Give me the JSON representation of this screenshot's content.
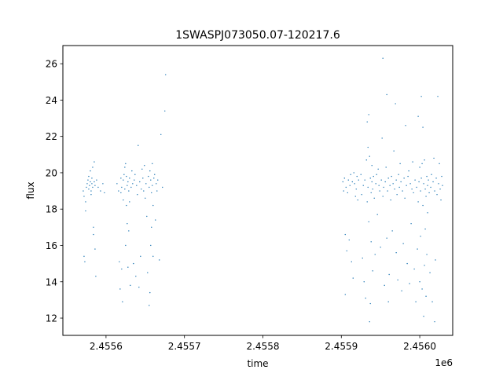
{
  "chart_data": {
    "type": "scatter",
    "title": "1SWASPJ073050.07-120217.6",
    "xlabel": "time",
    "ylabel": "flux",
    "x_offset_label": "1e6",
    "xlim": [
      2455545,
      2456042
    ],
    "ylim": [
      11.05,
      27.0
    ],
    "x_ticks": [
      {
        "value": 2455600,
        "label": "2.4556"
      },
      {
        "value": 2455700,
        "label": "2.4557"
      },
      {
        "value": 2455800,
        "label": "2.4558"
      },
      {
        "value": 2455900,
        "label": "2.4559"
      },
      {
        "value": 2456000,
        "label": "2.4560"
      }
    ],
    "y_ticks": [
      {
        "value": 12,
        "label": "12"
      },
      {
        "value": 14,
        "label": "14"
      },
      {
        "value": 16,
        "label": "16"
      },
      {
        "value": 18,
        "label": "18"
      },
      {
        "value": 20,
        "label": "20"
      },
      {
        "value": 22,
        "label": "22"
      },
      {
        "value": 24,
        "label": "24"
      },
      {
        "value": 26,
        "label": "26"
      }
    ],
    "grid": false,
    "legend": "none",
    "marker_color": "#1f77b4",
    "series": [
      {
        "points": [
          [
            2455571,
            19.0
          ],
          [
            2455572,
            18.7
          ],
          [
            2455572,
            15.4
          ],
          [
            2455573,
            15.1
          ],
          [
            2455574,
            18.4
          ],
          [
            2455574,
            17.9
          ],
          [
            2455575,
            19.2
          ],
          [
            2455576,
            19.4
          ],
          [
            2455577,
            19.6
          ],
          [
            2455578,
            19.8
          ],
          [
            2455578,
            19.1
          ],
          [
            2455579,
            19.3
          ],
          [
            2455580,
            19.5
          ],
          [
            2455580,
            20.1
          ],
          [
            2455581,
            19.0
          ],
          [
            2455581,
            18.8
          ],
          [
            2455582,
            19.4
          ],
          [
            2455582,
            19.7
          ],
          [
            2455583,
            19.2
          ],
          [
            2455583,
            20.3
          ],
          [
            2455584,
            16.6
          ],
          [
            2455584,
            17.0
          ],
          [
            2455585,
            19.5
          ],
          [
            2455585,
            20.6
          ],
          [
            2455586,
            15.8
          ],
          [
            2455586,
            19.3
          ],
          [
            2455587,
            14.3
          ],
          [
            2455588,
            19.6
          ],
          [
            2455590,
            19.2
          ],
          [
            2455593,
            19.0
          ],
          [
            2455596,
            19.4
          ],
          [
            2455598,
            18.9
          ],
          [
            2455614,
            19.4
          ],
          [
            2455616,
            19.0
          ],
          [
            2455617,
            15.1
          ],
          [
            2455618,
            13.6
          ],
          [
            2455619,
            19.7
          ],
          [
            2455619,
            18.9
          ],
          [
            2455620,
            14.7
          ],
          [
            2455620,
            19.2
          ],
          [
            2455621,
            12.9
          ],
          [
            2455622,
            19.6
          ],
          [
            2455622,
            18.5
          ],
          [
            2455623,
            19.9
          ],
          [
            2455624,
            20.3
          ],
          [
            2455624,
            19.1
          ],
          [
            2455625,
            20.5
          ],
          [
            2455625,
            16.0
          ],
          [
            2455626,
            18.2
          ],
          [
            2455626,
            19.8
          ],
          [
            2455627,
            19.3
          ],
          [
            2455627,
            17.2
          ],
          [
            2455628,
            19.5
          ],
          [
            2455628,
            14.8
          ],
          [
            2455629,
            19.0
          ],
          [
            2455629,
            16.8
          ],
          [
            2455630,
            19.7
          ],
          [
            2455630,
            18.4
          ],
          [
            2455631,
            13.8
          ],
          [
            2455632,
            19.2
          ],
          [
            2455633,
            20.1
          ],
          [
            2455634,
            19.4
          ],
          [
            2455635,
            15.0
          ],
          [
            2455636,
            19.6
          ],
          [
            2455637,
            19.9
          ],
          [
            2455638,
            14.3
          ],
          [
            2455639,
            19.3
          ],
          [
            2455640,
            18.8
          ],
          [
            2455641,
            21.5
          ],
          [
            2455642,
            13.7
          ],
          [
            2455643,
            19.5
          ],
          [
            2455644,
            15.4
          ],
          [
            2455645,
            19.1
          ],
          [
            2455646,
            20.2
          ],
          [
            2455647,
            19.7
          ],
          [
            2455648,
            19.0
          ],
          [
            2455649,
            20.4
          ],
          [
            2455650,
            18.6
          ],
          [
            2455651,
            19.4
          ],
          [
            2455652,
            17.6
          ],
          [
            2455653,
            14.5
          ],
          [
            2455654,
            19.8
          ],
          [
            2455655,
            12.7
          ],
          [
            2455655,
            19.2
          ],
          [
            2455656,
            13.4
          ],
          [
            2455656,
            20.1
          ],
          [
            2455657,
            16.0
          ],
          [
            2455657,
            19.6
          ],
          [
            2455658,
            17.0
          ],
          [
            2455658,
            18.9
          ],
          [
            2455659,
            19.3
          ],
          [
            2455659,
            20.5
          ],
          [
            2455660,
            15.4
          ],
          [
            2455660,
            18.2
          ],
          [
            2455661,
            19.7
          ],
          [
            2455662,
            19.9
          ],
          [
            2455663,
            17.4
          ],
          [
            2455664,
            19.4
          ],
          [
            2455665,
            19.0
          ],
          [
            2455666,
            19.6
          ],
          [
            2455668,
            15.2
          ],
          [
            2455670,
            22.1
          ],
          [
            2455672,
            19.2
          ],
          [
            2455675,
            23.4
          ],
          [
            2455676,
            25.4
          ],
          [
            2455902,
            19.5
          ],
          [
            2455903,
            19.0
          ],
          [
            2455904,
            19.7
          ],
          [
            2455905,
            13.3
          ],
          [
            2455905,
            16.6
          ],
          [
            2455906,
            19.2
          ],
          [
            2455907,
            15.7
          ],
          [
            2455908,
            18.9
          ],
          [
            2455909,
            19.6
          ],
          [
            2455910,
            16.3
          ],
          [
            2455911,
            19.3
          ],
          [
            2455912,
            19.9
          ],
          [
            2455913,
            15.1
          ],
          [
            2455914,
            19.5
          ],
          [
            2455915,
            14.2
          ],
          [
            2455916,
            20.0
          ],
          [
            2455917,
            19.4
          ],
          [
            2455918,
            18.7
          ],
          [
            2455919,
            19.1
          ],
          [
            2455920,
            19.8
          ],
          [
            2455921,
            18.5
          ],
          [
            2455922,
            19.6
          ],
          [
            2455925,
            19.9
          ],
          [
            2455926,
            18.8
          ],
          [
            2455927,
            15.3
          ],
          [
            2455928,
            19.3
          ],
          [
            2455929,
            14.0
          ],
          [
            2455930,
            19.6
          ],
          [
            2455931,
            13.1
          ],
          [
            2455932,
            20.7
          ],
          [
            2455933,
            22.8
          ],
          [
            2455933,
            18.4
          ],
          [
            2455934,
            21.4
          ],
          [
            2455934,
            19.2
          ],
          [
            2455935,
            23.2
          ],
          [
            2455935,
            17.3
          ],
          [
            2455936,
            11.8
          ],
          [
            2455936,
            20.9
          ],
          [
            2455937,
            12.8
          ],
          [
            2455937,
            19.7
          ],
          [
            2455938,
            16.2
          ],
          [
            2455938,
            18.9
          ],
          [
            2455939,
            19.5
          ],
          [
            2455939,
            20.4
          ],
          [
            2455940,
            14.6
          ],
          [
            2455940,
            19.1
          ],
          [
            2455941,
            19.8
          ],
          [
            2455942,
            18.6
          ],
          [
            2455943,
            15.5
          ],
          [
            2455944,
            19.4
          ],
          [
            2455945,
            19.9
          ],
          [
            2455946,
            17.7
          ],
          [
            2455947,
            20.2
          ],
          [
            2455948,
            19.3
          ],
          [
            2455949,
            19.0
          ],
          [
            2455950,
            15.9
          ],
          [
            2455951,
            19.6
          ],
          [
            2455952,
            21.9
          ],
          [
            2455953,
            26.3
          ],
          [
            2455953,
            18.7
          ],
          [
            2455954,
            19.2
          ],
          [
            2455955,
            13.8
          ],
          [
            2455956,
            19.5
          ],
          [
            2455957,
            20.3
          ],
          [
            2455958,
            24.3
          ],
          [
            2455958,
            16.4
          ],
          [
            2455959,
            19.0
          ],
          [
            2455960,
            12.9
          ],
          [
            2455960,
            19.7
          ],
          [
            2455961,
            14.4
          ],
          [
            2455962,
            19.3
          ],
          [
            2455963,
            18.5
          ],
          [
            2455964,
            19.8
          ],
          [
            2455965,
            16.8
          ],
          [
            2455966,
            19.4
          ],
          [
            2455967,
            21.2
          ],
          [
            2455968,
            19.1
          ],
          [
            2455969,
            23.8
          ],
          [
            2455970,
            19.6
          ],
          [
            2455970,
            15.6
          ],
          [
            2455971,
            18.8
          ],
          [
            2455972,
            14.1
          ],
          [
            2455973,
            19.9
          ],
          [
            2455974,
            19.2
          ],
          [
            2455975,
            20.5
          ],
          [
            2455976,
            19.5
          ],
          [
            2455977,
            13.5
          ],
          [
            2455978,
            19.0
          ],
          [
            2455979,
            16.1
          ],
          [
            2455980,
            19.7
          ],
          [
            2455981,
            18.6
          ],
          [
            2455982,
            22.6
          ],
          [
            2455983,
            19.3
          ],
          [
            2455984,
            15.0
          ],
          [
            2455985,
            19.8
          ],
          [
            2455986,
            20.1
          ],
          [
            2455987,
            13.9
          ],
          [
            2455988,
            19.4
          ],
          [
            2455989,
            17.2
          ],
          [
            2455990,
            19.1
          ],
          [
            2455991,
            20.6
          ],
          [
            2455992,
            18.9
          ],
          [
            2455993,
            14.7
          ],
          [
            2455994,
            19.6
          ],
          [
            2455995,
            12.9
          ],
          [
            2455996,
            19.2
          ],
          [
            2455997,
            15.8
          ],
          [
            2455998,
            23.1
          ],
          [
            2455998,
            18.4
          ],
          [
            2455999,
            19.5
          ],
          [
            2456000,
            20.3
          ],
          [
            2456000,
            14.0
          ],
          [
            2456001,
            16.5
          ],
          [
            2456001,
            19.0
          ],
          [
            2456002,
            24.2
          ],
          [
            2456002,
            19.7
          ],
          [
            2456003,
            13.6
          ],
          [
            2456003,
            20.5
          ],
          [
            2456004,
            22.5
          ],
          [
            2456004,
            18.2
          ],
          [
            2456005,
            12.1
          ],
          [
            2456005,
            19.4
          ],
          [
            2456006,
            14.9
          ],
          [
            2456006,
            20.7
          ],
          [
            2456007,
            16.9
          ],
          [
            2456007,
            19.1
          ],
          [
            2456008,
            13.2
          ],
          [
            2456008,
            18.7
          ],
          [
            2456009,
            19.8
          ],
          [
            2456009,
            15.5
          ],
          [
            2456010,
            19.3
          ],
          [
            2456010,
            17.8
          ],
          [
            2456011,
            19.6
          ],
          [
            2456012,
            18.9
          ],
          [
            2456013,
            14.5
          ],
          [
            2456014,
            19.2
          ],
          [
            2456015,
            19.9
          ],
          [
            2456016,
            12.9
          ],
          [
            2456017,
            19.5
          ],
          [
            2456018,
            20.8
          ],
          [
            2456019,
            11.8
          ],
          [
            2456019,
            19.0
          ],
          [
            2456020,
            15.2
          ],
          [
            2456021,
            19.7
          ],
          [
            2456022,
            18.8
          ],
          [
            2456023,
            24.2
          ],
          [
            2456024,
            19.4
          ],
          [
            2456025,
            20.5
          ],
          [
            2456026,
            19.1
          ],
          [
            2456027,
            18.5
          ],
          [
            2456028,
            19.8
          ],
          [
            2456029,
            19.3
          ]
        ]
      }
    ]
  }
}
